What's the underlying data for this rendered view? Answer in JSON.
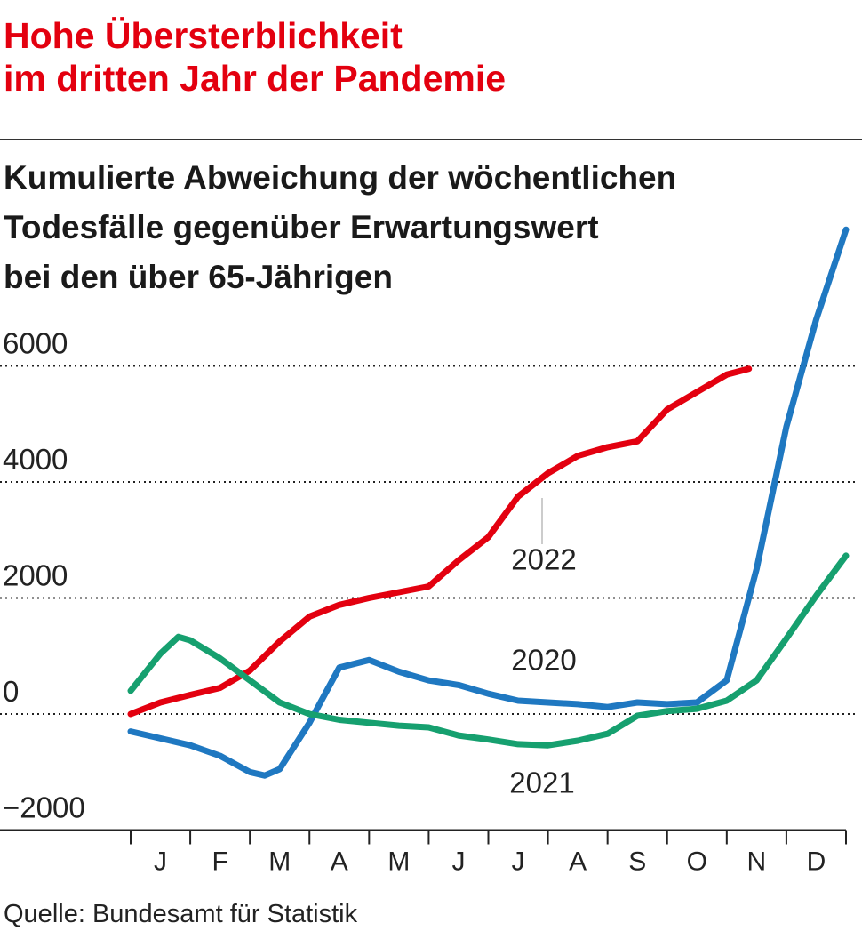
{
  "chart_data": {
    "type": "line",
    "title": "Hohe Übersterblichkeit\nim dritten Jahr der Pandemie",
    "subtitle": "Kumulierte Abweichung der wöchentlichen\nTodesfälle gegenüber Erwartungswert\nbei den über 65-Jährigen",
    "source": "Quelle: Bundesamt für Statistik",
    "categories": [
      "J",
      "F",
      "M",
      "A",
      "M",
      "J",
      "J",
      "A",
      "S",
      "O",
      "N",
      "D"
    ],
    "xlim": [
      0,
      12
    ],
    "ylim": [
      -2000,
      8500
    ],
    "yticks": [
      {
        "value": -2000,
        "label": "−2000"
      },
      0,
      2000,
      4000,
      6000
    ],
    "grid": true,
    "series": [
      {
        "name": "2022",
        "color": "#e3000f",
        "x": [
          0,
          0.5,
          1,
          1.5,
          2,
          2.5,
          3,
          3.5,
          4,
          4.5,
          5,
          5.5,
          6,
          6.5,
          7,
          7.5,
          8,
          8.5,
          9,
          9.5,
          10,
          10.37
        ],
        "values": [
          0,
          200,
          330,
          450,
          750,
          1250,
          1680,
          1880,
          2000,
          2100,
          2200,
          2650,
          3050,
          3750,
          4150,
          4450,
          4600,
          4700,
          5250,
          5550,
          5850,
          5950
        ]
      },
      {
        "name": "2020",
        "color": "#1f78c1",
        "x": [
          0,
          0.5,
          1,
          1.5,
          2,
          2.25,
          2.5,
          3,
          3.5,
          4,
          4.5,
          5,
          5.5,
          6,
          6.5,
          7,
          7.5,
          8,
          8.5,
          9,
          9.5,
          10,
          10.5,
          11,
          11.5,
          12
        ],
        "values": [
          -300,
          -420,
          -540,
          -720,
          -1000,
          -1060,
          -950,
          -150,
          800,
          930,
          730,
          580,
          500,
          350,
          230,
          200,
          170,
          120,
          200,
          170,
          200,
          580,
          2500,
          4950,
          6800,
          8350
        ]
      },
      {
        "name": "2021",
        "color": "#16a06f",
        "x": [
          0,
          0.5,
          0.8,
          1,
          1.5,
          2,
          2.5,
          3,
          3.5,
          4,
          4.5,
          5,
          5.5,
          6,
          6.5,
          7,
          7.5,
          8,
          8.5,
          9,
          9.5,
          10,
          10.5,
          11,
          11.5,
          12
        ],
        "values": [
          400,
          1040,
          1330,
          1270,
          960,
          580,
          200,
          0,
          -100,
          -150,
          -200,
          -230,
          -370,
          -440,
          -520,
          -540,
          -460,
          -340,
          -30,
          50,
          90,
          230,
          580,
          1300,
          2040,
          2730
        ]
      }
    ]
  }
}
